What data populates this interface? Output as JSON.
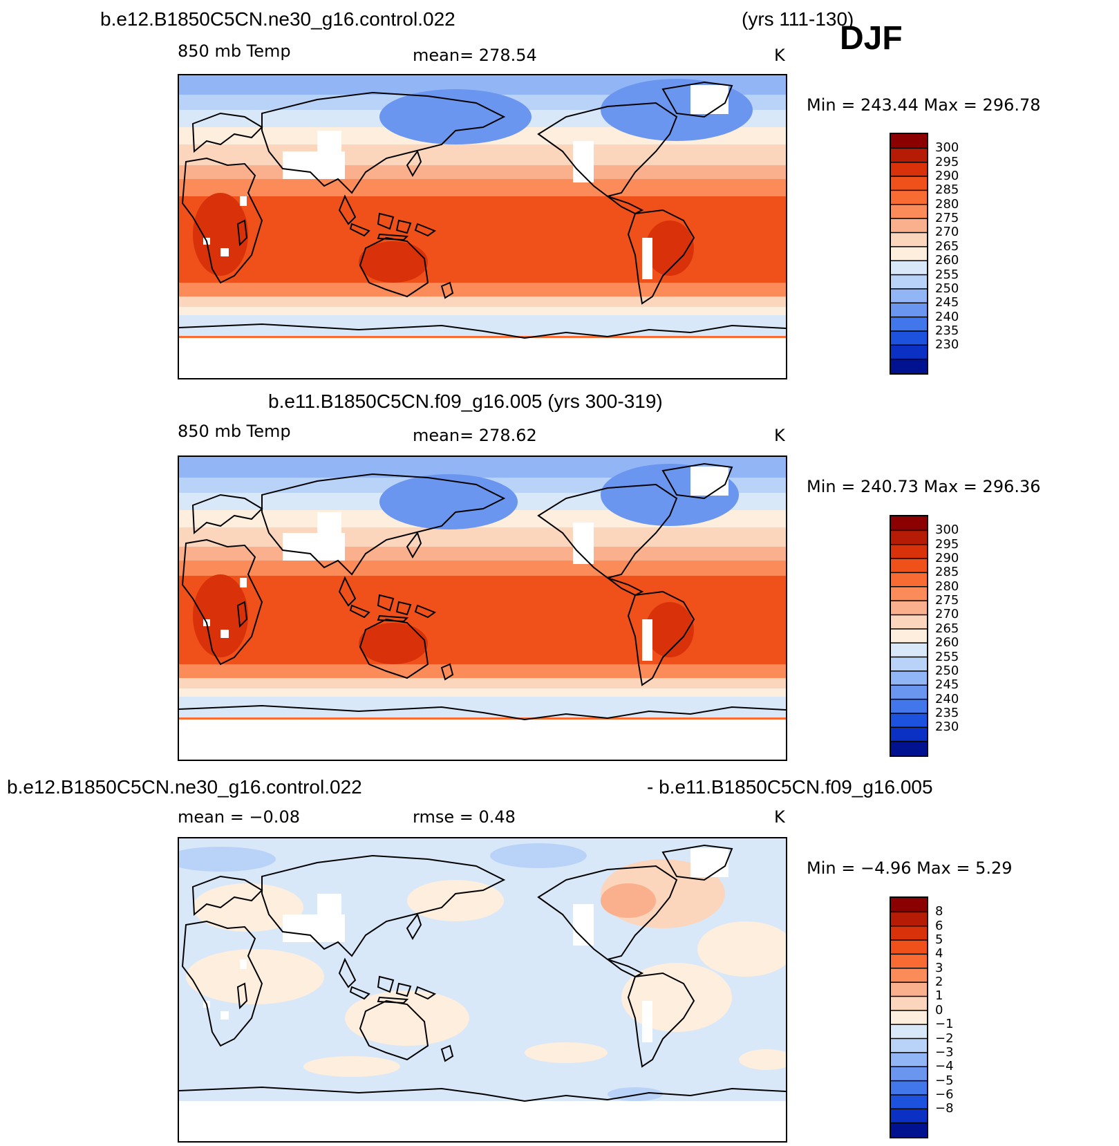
{
  "header": {
    "case1": "b.e12.B1850C5CN.ne30_g16.control.022",
    "years1": "(yrs 111-130)",
    "season": "DJF"
  },
  "panels": [
    {
      "variable": "850 mb Temp",
      "mean": "mean=  278.54",
      "units": "K",
      "minmax": "Min  =  243.44  Max  =  296.78"
    },
    {
      "title": "b.e11.B1850C5CN.f09_g16.005 (yrs 300-319)",
      "variable": "850 mb Temp",
      "mean": "mean=  278.62",
      "units": "K",
      "minmax": "Min  =  240.73  Max  =  296.36"
    },
    {
      "title_left": "b.e12.B1850C5CN.ne30_g16.control.022",
      "title_right": "- b.e11.B1850C5CN.f09_g16.005",
      "mean": "mean  =   −0.08",
      "rmse": "rmse  =     0.48",
      "units": "K",
      "minmax": "Min  =    −4.96  Max  =     5.29"
    }
  ],
  "colorbar_temp": {
    "ticks": [
      "300",
      "295",
      "290",
      "285",
      "280",
      "275",
      "270",
      "265",
      "260",
      "255",
      "250",
      "245",
      "240",
      "235",
      "230"
    ],
    "colors": [
      "#8b0000",
      "#b51b05",
      "#d9320a",
      "#f0501a",
      "#f86b33",
      "#fb8b59",
      "#fbb08d",
      "#fcd5bd",
      "#fdeede",
      "#d8e8f8",
      "#b8d2f8",
      "#92b6f5",
      "#6a96ef",
      "#4177ea",
      "#1d52de",
      "#0a30c4",
      "#00128f"
    ]
  },
  "colorbar_diff": {
    "ticks": [
      "8",
      "6",
      "5",
      "4",
      "3",
      "2",
      "1",
      "0",
      "−1",
      "−2",
      "−3",
      "−4",
      "−5",
      "−6",
      "−8"
    ],
    "colors": [
      "#8b0000",
      "#b51b05",
      "#d9320a",
      "#f0501a",
      "#f86b33",
      "#fb8b59",
      "#fbb08d",
      "#fcd5bd",
      "#fdeede",
      "#d8e8f8",
      "#b8d2f8",
      "#92b6f5",
      "#6a96ef",
      "#4177ea",
      "#1d52de",
      "#0a30c4",
      "#00128f"
    ]
  }
}
